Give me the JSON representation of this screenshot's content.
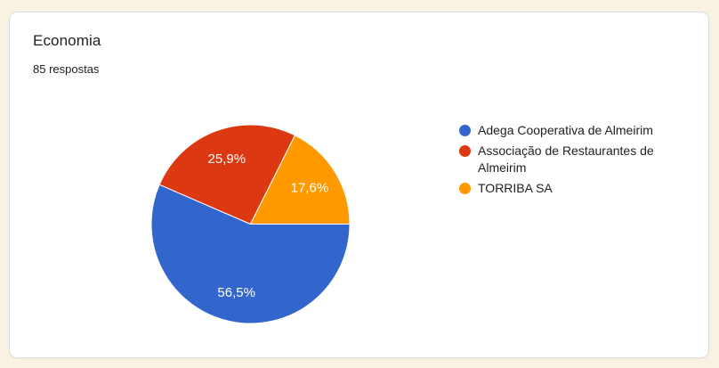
{
  "card": {
    "title": "Economia",
    "responses": "85 respostas"
  },
  "chart_data": {
    "type": "pie",
    "title": "Economia",
    "subtitle": "85 respostas",
    "total_responses": 85,
    "legend_position": "right",
    "categories": [
      "Adega Cooperativa de Almeirim",
      "Associação de Restaurantes de Almeirim",
      "TORRIBA SA"
    ],
    "values": [
      56.5,
      25.9,
      17.6
    ],
    "value_labels": [
      "56,5%",
      "25,9%",
      "17,6%"
    ],
    "colors": [
      "#3366CC",
      "#DC3912",
      "#FF9900"
    ],
    "start_angle_deg": 0,
    "direction": "clockwise",
    "slice_border_color": "#FFFFFF"
  }
}
